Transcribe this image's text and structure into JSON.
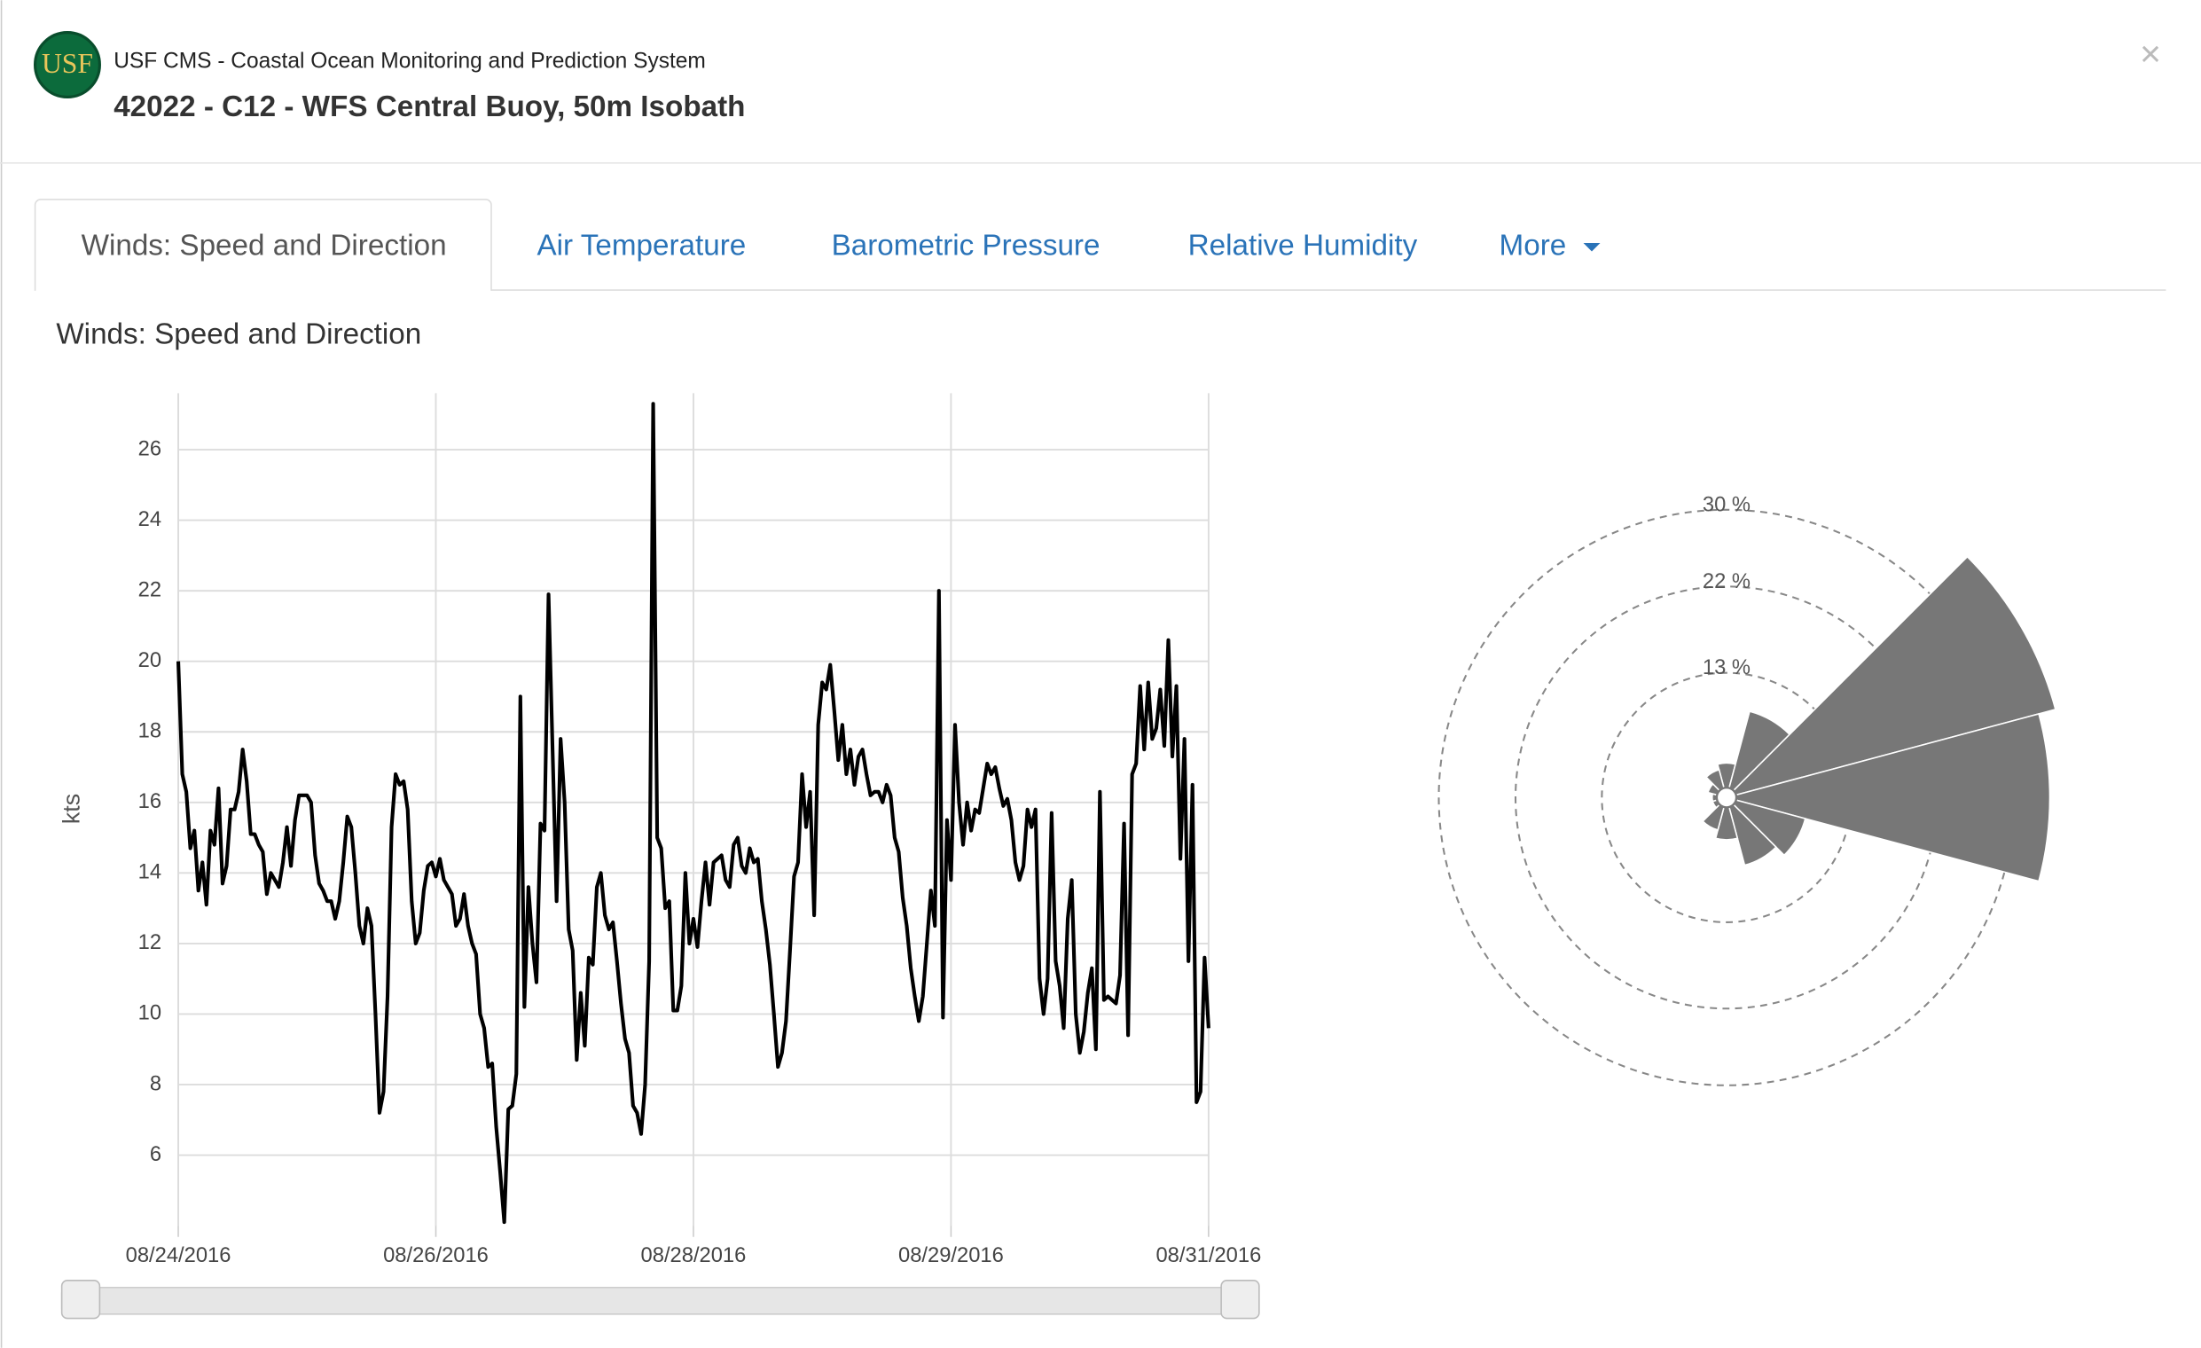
{
  "header": {
    "logo": "USF",
    "title": "USF CMS - Coastal Ocean Monitoring and Prediction System",
    "subtitle": "42022 - C12 - WFS Central Buoy, 50m Isobath",
    "close": "×"
  },
  "tabs": [
    "Winds: Speed and Direction",
    "Air Temperature",
    "Barometric Pressure",
    "Relative Humidity",
    "More"
  ],
  "section_title": "Winds: Speed and Direction",
  "chart_data": [
    {
      "type": "line",
      "y_label": "kts",
      "color": "#000000",
      "grid": true,
      "values": [
        20,
        16.8,
        16.3,
        14.7,
        15.2,
        13.5,
        14.3,
        13.1,
        15.2,
        14.8,
        16.4,
        13.7,
        14.2,
        15.8,
        15.8,
        16.3,
        17.5,
        16.6,
        15.1,
        15.1,
        14.8,
        14.6,
        13.4,
        14.0,
        13.8,
        13.6,
        14.3,
        15.3,
        14.2,
        15.5,
        16.2,
        16.2,
        16.2,
        16.0,
        14.5,
        13.7,
        13.5,
        13.2,
        13.2,
        12.7,
        13.2,
        14.3,
        15.6,
        15.3,
        14.0,
        12.5,
        12.0,
        13.0,
        12.5,
        10.0,
        7.2,
        7.8,
        10.5,
        15.3,
        16.8,
        16.5,
        16.6,
        15.8,
        13.2,
        12.0,
        12.3,
        13.5,
        14.2,
        14.3,
        13.9,
        14.4,
        13.8,
        13.6,
        13.4,
        12.5,
        12.7,
        13.4,
        12.5,
        12.0,
        11.7,
        10.0,
        9.6,
        8.5,
        8.6,
        6.8,
        5.5,
        4.1,
        7.3,
        7.4,
        8.3,
        19.0,
        10.2,
        13.6,
        12.0,
        10.9,
        15.4,
        15.2,
        21.9,
        17.5,
        13.2,
        17.8,
        16.0,
        12.4,
        11.8,
        8.7,
        10.6,
        9.1,
        11.6,
        11.4,
        13.6,
        14.0,
        12.8,
        12.4,
        12.6,
        11.5,
        10.3,
        9.3,
        8.9,
        7.4,
        7.2,
        6.6,
        8.0,
        11.5,
        27.3,
        15.0,
        14.7,
        13.0,
        13.2,
        10.1,
        10.1,
        10.8,
        14.0,
        12.0,
        12.7,
        11.9,
        13.2,
        14.3,
        13.1,
        14.3,
        14.4,
        14.5,
        13.8,
        13.6,
        14.8,
        15.0,
        14.2,
        14.0,
        14.7,
        14.3,
        14.4,
        13.2,
        12.4,
        11.4,
        10.0,
        8.5,
        8.9,
        9.8,
        11.8,
        13.9,
        14.3,
        16.8,
        15.3,
        16.3,
        12.8,
        18.2,
        19.4,
        19.2,
        19.9,
        18.6,
        17.2,
        18.2,
        16.8,
        17.5,
        16.5,
        17.3,
        17.5,
        16.8,
        16.2,
        16.3,
        16.3,
        16.0,
        16.5,
        16.2,
        15.0,
        14.6,
        13.3,
        12.5,
        11.3,
        10.5,
        9.8,
        10.5,
        12.0,
        13.5,
        12.5,
        22.0,
        9.9,
        15.5,
        13.8,
        18.2,
        16.0,
        14.8,
        16.0,
        15.2,
        15.8,
        15.7,
        16.4,
        17.1,
        16.8,
        17.0,
        16.4,
        15.9,
        16.1,
        15.5,
        14.3,
        13.8,
        14.2,
        15.8,
        15.3,
        15.8,
        11.0,
        10.0,
        11.0,
        15.7,
        11.5,
        10.8,
        9.6,
        12.7,
        13.8,
        10.0,
        8.9,
        9.5,
        10.6,
        11.3,
        9.0,
        16.3,
        10.4,
        10.5,
        10.4,
        10.3,
        11.1,
        15.4,
        9.4,
        16.8,
        17.1,
        19.3,
        17.5,
        19.4,
        17.8,
        18.1,
        19.2,
        17.6,
        20.6,
        17.3,
        19.3,
        14.4,
        17.8,
        11.5,
        16.5,
        7.5,
        7.8,
        11.6,
        9.6
      ],
      "xlim": [
        0,
        256
      ],
      "xticks": [
        {
          "value": 0,
          "label": "08/24/2016"
        },
        {
          "value": 64,
          "label": "08/26/2016"
        },
        {
          "value": 128,
          "label": "08/28/2016"
        },
        {
          "value": 192,
          "label": "08/29/2016"
        },
        {
          "value": 256,
          "label": "08/31/2016"
        }
      ],
      "ylim": [
        4,
        27.6
      ],
      "yticks": [
        6,
        8,
        10,
        12,
        14,
        16,
        18,
        20,
        22,
        24,
        26
      ]
    },
    {
      "type": "windrose",
      "color": "#777777",
      "theta": [
        0,
        30,
        60,
        90,
        120,
        150,
        180,
        210,
        240,
        270,
        300,
        330
      ],
      "values": [
        3.6,
        9.3,
        35.5,
        33.7,
        8.5,
        7.3,
        4.4,
        3.5,
        1.5,
        1.5,
        2,
        3
      ],
      "rlim": [
        0,
        30
      ],
      "rticks": [
        {
          "value": 13,
          "label": "13 %"
        },
        {
          "value": 22,
          "label": "22 %"
        },
        {
          "value": 30,
          "label": "30 %"
        }
      ]
    }
  ]
}
